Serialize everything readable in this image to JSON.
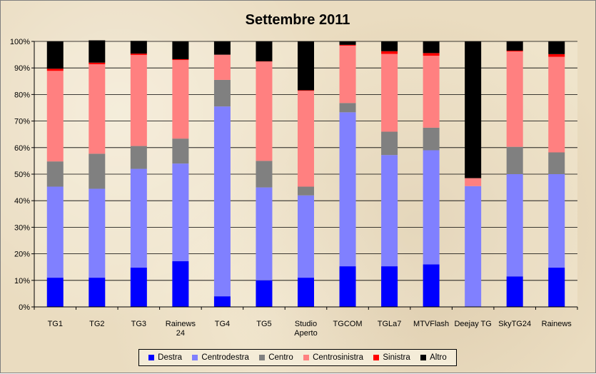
{
  "chart_data": {
    "type": "bar",
    "stacked": true,
    "percent": true,
    "title": "Settembre 2011",
    "xlabel": "",
    "ylabel": "",
    "ylim": [
      0,
      100
    ],
    "yticks": [
      "0%",
      "10%",
      "20%",
      "30%",
      "40%",
      "50%",
      "60%",
      "70%",
      "80%",
      "90%",
      "100%"
    ],
    "grid": true,
    "legend_position": "bottom",
    "categories": [
      [
        "TG1"
      ],
      [
        "TG2"
      ],
      [
        "TG3"
      ],
      [
        "Rainews",
        "24"
      ],
      [
        "TG4"
      ],
      [
        "TG5"
      ],
      [
        "Studio",
        "Aperto"
      ],
      [
        "TGCOM"
      ],
      [
        "TGLa7"
      ],
      [
        "MTVFlash"
      ],
      [
        "Deejay TG"
      ],
      [
        "SkyTG24"
      ],
      [
        "Rainews"
      ]
    ],
    "series": [
      {
        "name": "Destra",
        "color": "#0000ff",
        "values": [
          11,
          11,
          14.8,
          17.2,
          4,
          10,
          11,
          15.3,
          15.3,
          16,
          0,
          11.5,
          14.8
        ]
      },
      {
        "name": "Centrodestra",
        "color": "#8080ff",
        "values": [
          34.3,
          33.5,
          37.2,
          36.8,
          71.5,
          35,
          31,
          58,
          41.9,
          43,
          45.5,
          38.5,
          35.2
        ]
      },
      {
        "name": "Centro",
        "color": "#808080",
        "values": [
          9.5,
          13.2,
          8.6,
          9.4,
          10,
          10,
          3.3,
          3.5,
          8.8,
          8.5,
          0,
          10.3,
          8.2
        ]
      },
      {
        "name": "Centrosinistra",
        "color": "#ff8080",
        "values": [
          34.1,
          33.7,
          34.3,
          29.6,
          9.5,
          37.4,
          36.1,
          21.6,
          29.3,
          27.1,
          3,
          35.9,
          36
        ]
      },
      {
        "name": "Sinistra",
        "color": "#ff0000",
        "values": [
          0.8,
          0.6,
          0.5,
          0.3,
          0,
          0.1,
          0.2,
          0.3,
          1,
          1,
          0,
          0.3,
          1
        ]
      },
      {
        "name": "Altro",
        "color": "#000000",
        "values": [
          10.3,
          8.4,
          4.8,
          6.7,
          5,
          7.5,
          18.4,
          1.3,
          3.7,
          4.4,
          51.5,
          3.5,
          4.8
        ]
      }
    ]
  }
}
